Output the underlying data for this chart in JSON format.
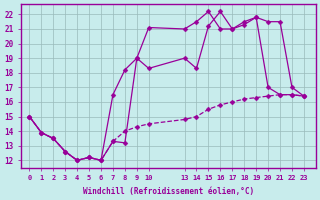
{
  "background_color": "#c8ecec",
  "line_color": "#990099",
  "grid_color": "#99bbbb",
  "xlabel": "Windchill (Refroidissement éolien,°C)",
  "ylim": [
    11.5,
    22.7
  ],
  "yticks": [
    12,
    13,
    14,
    15,
    16,
    17,
    18,
    19,
    20,
    21,
    22
  ],
  "xtick_positions": [
    0,
    1,
    2,
    3,
    4,
    5,
    6,
    7,
    8,
    9,
    10,
    13,
    14,
    15,
    16,
    17,
    18,
    19,
    20,
    21,
    22,
    23
  ],
  "xtick_labels": [
    "0",
    "1",
    "2",
    "3",
    "4",
    "5",
    "6",
    "7",
    "8",
    "9",
    "10",
    "13",
    "14",
    "15",
    "16",
    "17",
    "18",
    "19",
    "20",
    "21",
    "22",
    "23"
  ],
  "line1_x": [
    0,
    1,
    2,
    3,
    4,
    5,
    6,
    7,
    8,
    9,
    10,
    13,
    14,
    15,
    16,
    17,
    18,
    19,
    20,
    21,
    22,
    23
  ],
  "line1_y": [
    15.0,
    13.9,
    13.5,
    12.6,
    12.0,
    12.2,
    12.0,
    16.5,
    18.2,
    19.0,
    21.1,
    21.0,
    21.5,
    22.2,
    21.0,
    21.0,
    21.5,
    21.8,
    17.0,
    16.5,
    16.5,
    16.4
  ],
  "line2_x": [
    0,
    1,
    2,
    3,
    4,
    5,
    6,
    7,
    8,
    9,
    10,
    13,
    14,
    15,
    16,
    17,
    18,
    19,
    20,
    21,
    22,
    23
  ],
  "line2_y": [
    15.0,
    13.9,
    13.5,
    12.6,
    12.0,
    12.2,
    12.0,
    13.3,
    13.2,
    19.0,
    18.3,
    19.0,
    18.3,
    21.2,
    22.2,
    21.0,
    21.3,
    21.8,
    21.5,
    21.5,
    17.0,
    16.4
  ],
  "line3_x": [
    0,
    1,
    2,
    3,
    4,
    5,
    6,
    7,
    8,
    9,
    10,
    13,
    14,
    15,
    16,
    17,
    18,
    19,
    20,
    21,
    22,
    23
  ],
  "line3_y": [
    15.0,
    13.9,
    13.5,
    12.6,
    12.0,
    12.2,
    12.0,
    13.3,
    14.0,
    14.3,
    14.5,
    14.8,
    15.0,
    15.5,
    15.8,
    16.0,
    16.2,
    16.3,
    16.4,
    16.5,
    16.5,
    16.4
  ]
}
